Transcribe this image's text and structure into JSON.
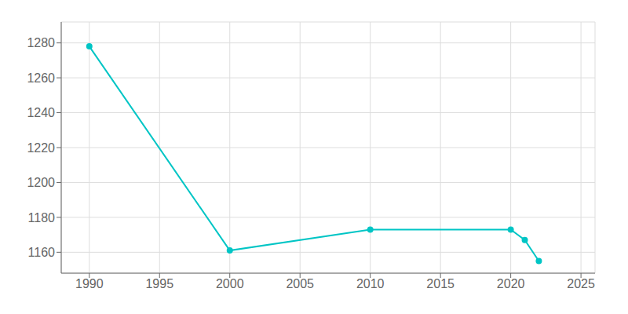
{
  "chart_data": {
    "type": "line",
    "x": [
      1990,
      2000,
      2010,
      2020,
      2021,
      2022
    ],
    "values": [
      1278,
      1161,
      1173,
      1173,
      1167,
      1155
    ],
    "color": "#00c5c5",
    "xlim": [
      1988,
      2026
    ],
    "xticks": [
      1990,
      1995,
      2000,
      2005,
      2010,
      2015,
      2020,
      2025
    ],
    "ylim": [
      1148,
      1292
    ],
    "yticks": [
      1160,
      1180,
      1200,
      1220,
      1240,
      1260,
      1280
    ],
    "grid": true,
    "marker": "circle"
  }
}
